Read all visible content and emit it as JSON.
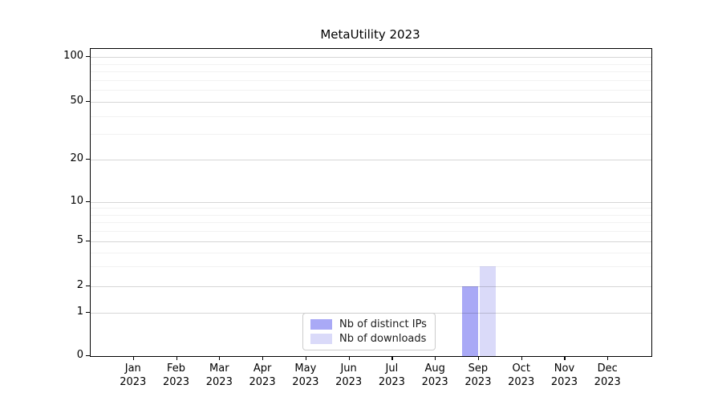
{
  "title": "MetaUtility 2023",
  "chart_data": {
    "type": "bar",
    "title": "MetaUtility 2023",
    "categories": [
      "Jan",
      "Feb",
      "Mar",
      "Apr",
      "May",
      "Jun",
      "Jul",
      "Aug",
      "Sep",
      "Oct",
      "Nov",
      "Dec"
    ],
    "category_year": "2023",
    "series": [
      {
        "name": "Nb of distinct IPs",
        "color": "#a9a9f6",
        "values": [
          0,
          0,
          0,
          0,
          0,
          0,
          0,
          0,
          2,
          0,
          0,
          0
        ]
      },
      {
        "name": "Nb of downloads",
        "color": "#dadaf9",
        "values": [
          0,
          0,
          0,
          0,
          0,
          0,
          0,
          0,
          3,
          0,
          0,
          0
        ]
      }
    ],
    "y_axis": {
      "scale": "log-like-with-zero",
      "major_ticks": [
        0,
        1,
        2,
        5,
        10,
        20,
        50,
        100
      ],
      "minor_ticks": [
        3,
        4,
        6,
        7,
        8,
        9,
        30,
        40,
        60,
        70,
        80,
        90
      ],
      "range": [
        0,
        100
      ]
    },
    "x_axis": {
      "label_format": "month over year, two lines"
    },
    "legend": {
      "position": "lower-center",
      "entries": [
        "Nb of distinct IPs",
        "Nb of downloads"
      ]
    },
    "grid": "horizontal major and minor lines"
  }
}
